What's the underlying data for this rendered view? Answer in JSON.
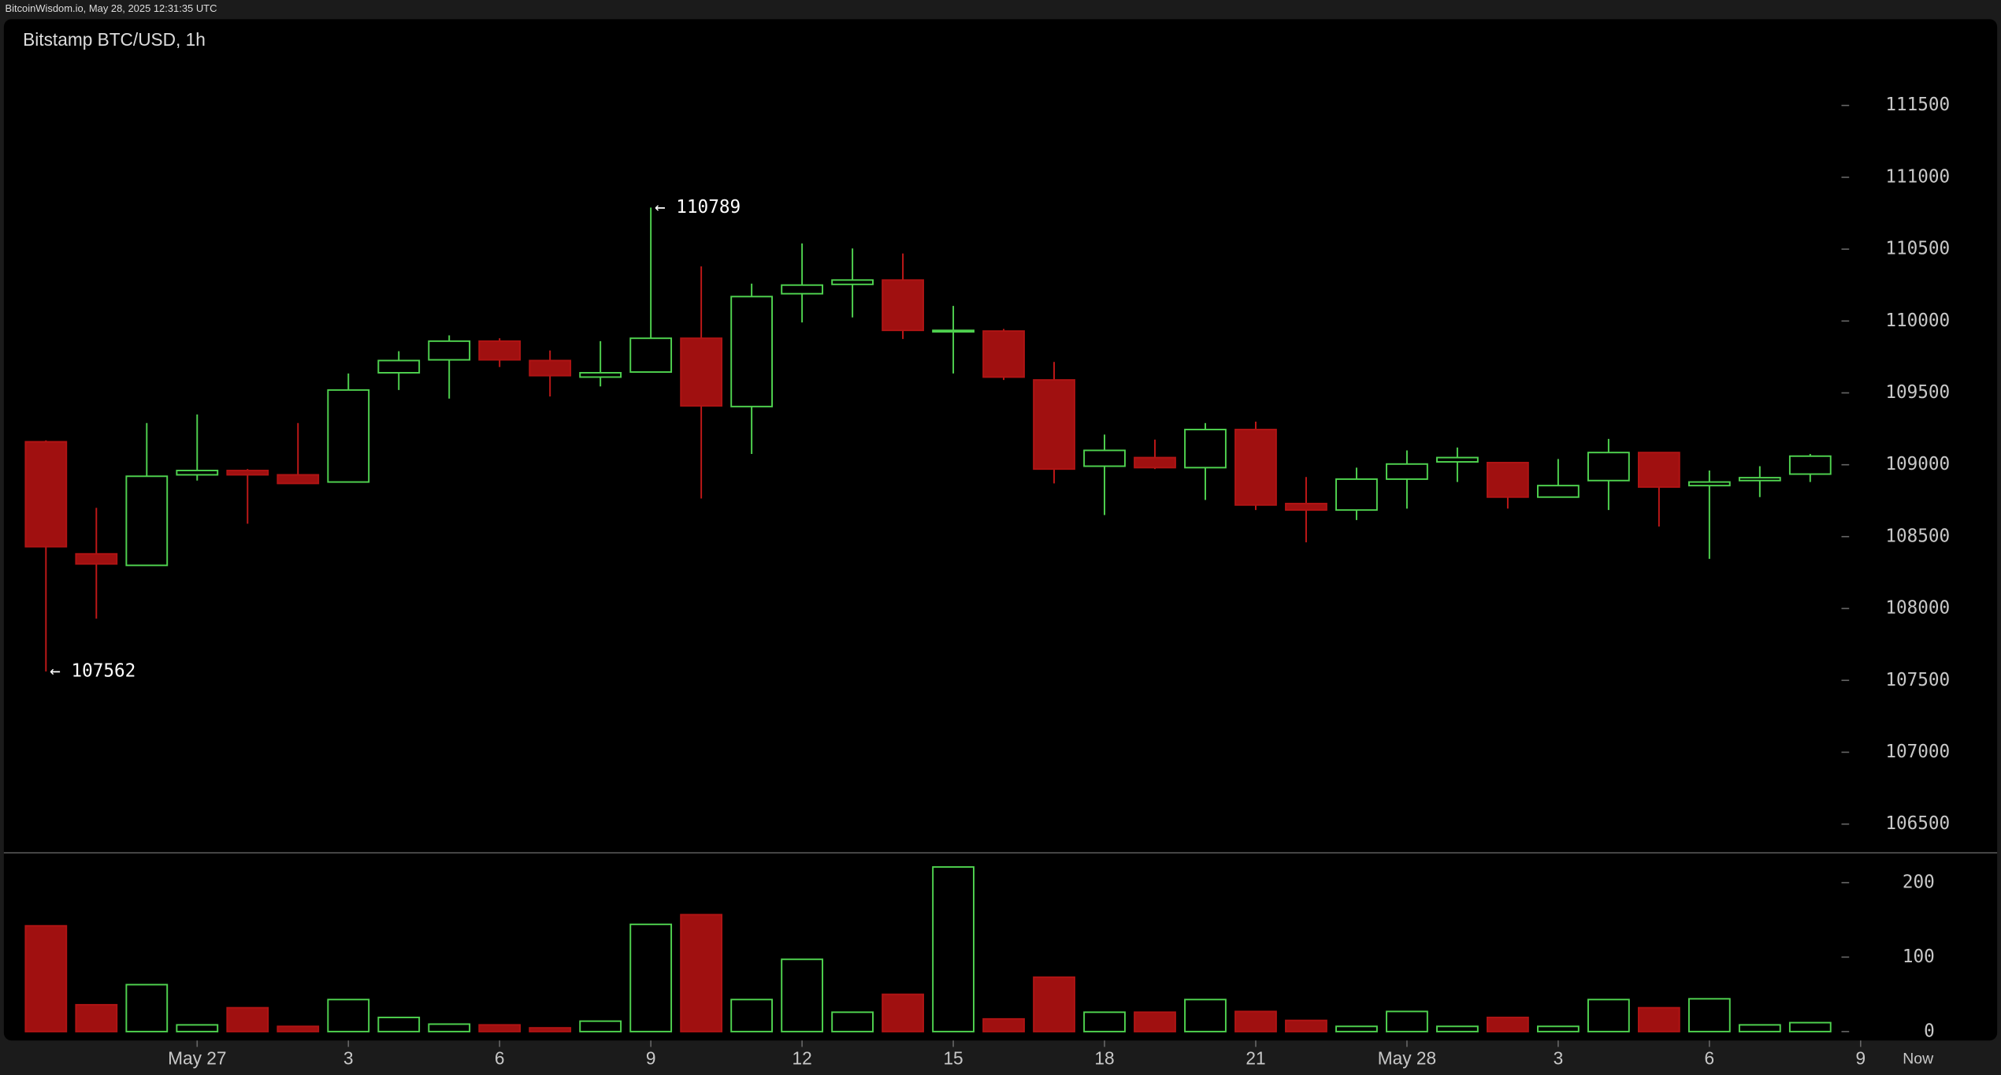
{
  "header": "BitcoinWisdom.io, May 28, 2025 12:31:35 UTC",
  "chart_data": {
    "type": "candlestick",
    "title": "Bitstamp BTC/USD, 1h",
    "open": [
      109160,
      108380,
      108300,
      108930,
      108960,
      108930,
      108880,
      109640,
      109730,
      109860,
      109725,
      109610,
      109645,
      109880,
      109405,
      110190,
      110255,
      110285,
      109925,
      109930,
      109590,
      108990,
      109050,
      108980,
      109245,
      108730,
      108685,
      108900,
      109020,
      109015,
      108775,
      108890,
      109085,
      108855,
      108890,
      108935
    ],
    "high": [
      109170,
      108700,
      109290,
      109350,
      108970,
      109290,
      109635,
      109790,
      109900,
      109880,
      109795,
      109860,
      110789,
      110380,
      110260,
      110540,
      110505,
      110470,
      110105,
      109945,
      109715,
      109210,
      109175,
      109290,
      109300,
      108915,
      108980,
      109100,
      109120,
      109015,
      109040,
      109180,
      109085,
      108960,
      108990,
      109075
    ],
    "low": [
      107562,
      107930,
      108300,
      108890,
      108590,
      108870,
      108880,
      109520,
      109460,
      109680,
      109475,
      109545,
      109645,
      108765,
      109075,
      109990,
      110025,
      109875,
      109635,
      109590,
      108870,
      108650,
      108970,
      108755,
      108685,
      108460,
      108615,
      108695,
      108880,
      108695,
      108775,
      108685,
      108570,
      108345,
      108775,
      108880
    ],
    "close": [
      108430,
      108310,
      108920,
      108960,
      108930,
      108870,
      109520,
      109725,
      109860,
      109730,
      109620,
      109640,
      109880,
      109410,
      110170,
      110250,
      110285,
      109935,
      109935,
      109610,
      108970,
      109100,
      108980,
      109245,
      108720,
      108685,
      108900,
      109005,
      109050,
      108775,
      108855,
      109085,
      108845,
      108880,
      108910,
      109060
    ],
    "volume": [
      142,
      36,
      63,
      9,
      32,
      7,
      43,
      19,
      10,
      9,
      5,
      14,
      144,
      157,
      43,
      97,
      26,
      50,
      221,
      17,
      73,
      26,
      26,
      43,
      27,
      15,
      7,
      27,
      7,
      19,
      7,
      43,
      32,
      44,
      9,
      12
    ],
    "up_color": "#4fd24f",
    "down_color": "#a01010",
    "ylim": [
      106300,
      112100
    ],
    "yticks": [
      106500,
      107000,
      107500,
      108000,
      108500,
      109000,
      109500,
      110000,
      110500,
      111000,
      111500
    ],
    "volume_ylim": [
      0,
      240
    ],
    "volume_ticks": [
      0,
      100,
      200
    ],
    "xticks": [
      {
        "value": 3,
        "label": "May 27"
      },
      {
        "value": 6,
        "label": "3"
      },
      {
        "value": 9,
        "label": "6"
      },
      {
        "value": 12,
        "label": "9"
      },
      {
        "value": 15,
        "label": "12"
      },
      {
        "value": 18,
        "label": "15"
      },
      {
        "value": 21,
        "label": "18"
      },
      {
        "value": 24,
        "label": "21"
      },
      {
        "value": 27,
        "label": "May 28"
      },
      {
        "value": 30,
        "label": "3"
      },
      {
        "value": 33,
        "label": "6"
      },
      {
        "value": 36,
        "label": "9"
      }
    ],
    "now_label": "Now",
    "annotations": [
      {
        "index": 12,
        "value": 110789,
        "label": "← 110789"
      },
      {
        "index": 0,
        "value": 107562,
        "label": "← 107562"
      }
    ]
  }
}
